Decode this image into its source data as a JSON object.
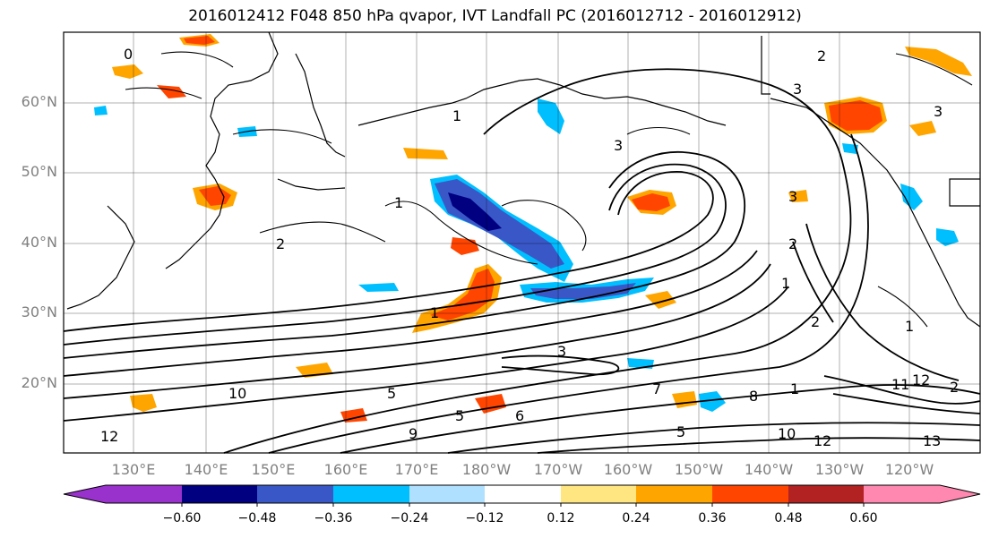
{
  "title": "2016012412 F048 850 hPa qvapor, IVT Landfall PC (2016012712 - 2016012912)",
  "lat_labels": [
    "60°N",
    "50°N",
    "40°N",
    "30°N",
    "20°N"
  ],
  "lon_labels": [
    "130°E",
    "140°E",
    "150°E",
    "160°E",
    "170°E",
    "180°W",
    "170°W",
    "160°W",
    "150°W",
    "140°W",
    "130°W",
    "120°W"
  ],
  "colorbar": {
    "colors": [
      "#9932cc",
      "#000080",
      "#3a57c8",
      "#00bfff",
      "#b0e0ff",
      "#ffffff",
      "#ffe680",
      "#ffa500",
      "#ff4500",
      "#b22222",
      "#ff88b0"
    ],
    "ticks": [
      "−0.60",
      "−0.48",
      "−0.36",
      "−0.24",
      "−0.12",
      "0.12",
      "0.24",
      "0.36",
      "0.48",
      "0.60"
    ]
  },
  "contour_labels": [
    "0",
    "1",
    "2",
    "3",
    "3",
    "1",
    "1",
    "2",
    "3",
    "2",
    "3",
    "2",
    "1",
    "1",
    "2",
    "3",
    "10",
    "12",
    "5",
    "9",
    "5",
    "8",
    "10",
    "12",
    "13",
    "11",
    "12",
    "7",
    "6",
    "5",
    "1"
  ]
}
